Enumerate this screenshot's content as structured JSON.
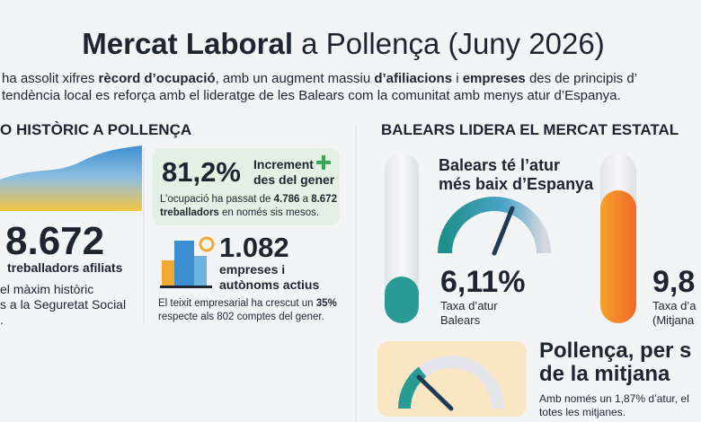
{
  "header": {
    "title": [
      {
        "text": "Mercat Laboral",
        "bold": true
      },
      {
        "text": " a Pollença (Juny 2026)",
        "bold": false
      }
    ],
    "intro": [
      [
        {
          "text": "ha assolit xifres ",
          "bold": false
        },
        {
          "text": "rècord d’ocupació",
          "bold": true
        },
        {
          "text": ", amb un augment massiu ",
          "bold": false
        },
        {
          "text": "d’afiliacions",
          "bold": true
        },
        {
          "text": " i ",
          "bold": false
        },
        {
          "text": "empreses",
          "bold": true
        },
        {
          "text": " des de principis d’",
          "bold": false
        }
      ],
      [
        {
          "text": "tendència local es reforça amb el lideratge de les Balears com la comunitat amb menys atur d’Espanya.",
          "bold": false
        }
      ]
    ]
  },
  "left": {
    "heading": "O HISTÒRIC A POLLENÇA",
    "big_number": "8.672",
    "big_label": "treballadors afiliats",
    "notes": [
      "el màxim històric",
      "s a la Seguretat Social",
      "."
    ],
    "growth_card": {
      "value": "81,2%",
      "label": [
        "Increment",
        "des del gener"
      ],
      "description": [
        [
          {
            "text": "L’ocupació ha passat de ",
            "bold": false
          },
          {
            "text": "4.786",
            "bold": true
          },
          {
            "text": " a ",
            "bold": false
          },
          {
            "text": "8.672",
            "bold": true
          }
        ],
        [
          {
            "text": "treballadors",
            "bold": true
          },
          {
            "text": " en només sis mesos.",
            "bold": false
          }
        ]
      ]
    },
    "business": {
      "value": "1.082",
      "label": [
        "empreses i",
        "autònoms actius"
      ],
      "description": [
        [
          {
            "text": "El teixit empresarial ha crescut un ",
            "bold": false
          },
          {
            "text": "35%",
            "bold": true
          }
        ],
        [
          {
            "text": "respecte als 802 comptes del gener.",
            "bold": false
          }
        ]
      ]
    }
  },
  "right": {
    "heading": "BALEARS LIDERA EL MERCAT ESTATAL",
    "balears": {
      "title": [
        "Balears té l’atur",
        "més baix d’Espanya"
      ],
      "value": "6,11%",
      "label": [
        "Taxa d’atur",
        "Balears"
      ]
    },
    "average": {
      "value": "9,8",
      "label": [
        "Taxa d’a",
        "(Mitjana"
      ]
    },
    "pollenca": {
      "title": [
        "Pollença, per s",
        "de la mitjana"
      ],
      "description": [
        "Amb només un 1,87% d’atur, el",
        "totes les mitjanes."
      ]
    }
  }
}
